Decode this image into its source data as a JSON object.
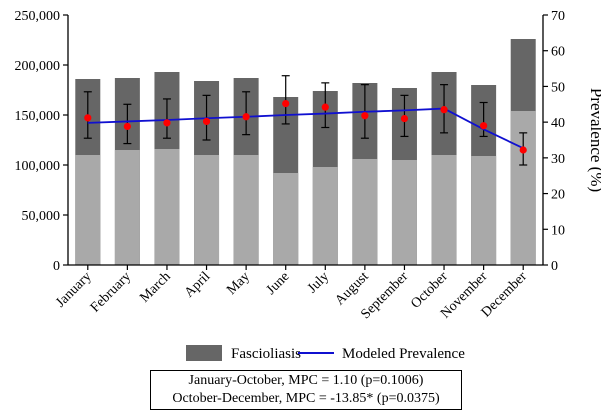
{
  "chart_data": {
    "type": "bar",
    "categories": [
      "January",
      "February",
      "March",
      "April",
      "May",
      "June",
      "July",
      "August",
      "September",
      "October",
      "November",
      "December"
    ],
    "series": [
      {
        "name": "Fascioliasis",
        "kind": "stacked-bar",
        "axis": "left",
        "color": "#666666",
        "values": [
          186000,
          187000,
          193000,
          184000,
          187000,
          168000,
          174000,
          182000,
          177000,
          193000,
          180000,
          226000
        ]
      },
      {
        "name": "",
        "kind": "bar-lower-segment",
        "axis": "left",
        "color": "#a9a9a9",
        "values": [
          110000,
          115000,
          116000,
          110000,
          110000,
          92000,
          98000,
          106000,
          105000,
          110000,
          109000,
          154000
        ]
      },
      {
        "name": "",
        "kind": "points-with-error",
        "axis": "right",
        "color": "#ff0000",
        "values": [
          41.2,
          38.8,
          39.8,
          40.2,
          41.5,
          45.2,
          44.2,
          41.8,
          41.0,
          43.5,
          39.0,
          32.2
        ],
        "err_low": [
          35.5,
          34.0,
          35.5,
          35.0,
          36.5,
          39.5,
          38.5,
          35.5,
          36.0,
          37.0,
          36.0,
          28.0
        ],
        "err_high": [
          48.5,
          45.0,
          46.5,
          47.5,
          48.5,
          53.0,
          51.0,
          50.5,
          47.5,
          50.5,
          45.5,
          37.0
        ]
      },
      {
        "name": "Modeled Prevalence",
        "kind": "line",
        "axis": "right",
        "color": "#1010d0",
        "values": [
          39.8,
          40.2,
          40.6,
          41.1,
          41.5,
          42.0,
          42.4,
          42.9,
          43.3,
          43.8,
          38.0,
          32.7
        ]
      }
    ],
    "ylim": [
      0,
      250000
    ],
    "y_ticks": [
      "0",
      "50,000",
      "100,000",
      "150,000",
      "200,000",
      "250,000"
    ],
    "y2label": "Prevalence (%)",
    "y2lim": [
      0,
      70
    ],
    "y2_ticks": [
      "0",
      "10",
      "20",
      "30",
      "40",
      "50",
      "60",
      "70"
    ],
    "legend_placement": "bottom",
    "grid": false,
    "annotations": [
      "January-October, MPC = 1.10 (p=0.1006)",
      "October-December, MPC = -13.85* (p=0.0375)"
    ]
  }
}
